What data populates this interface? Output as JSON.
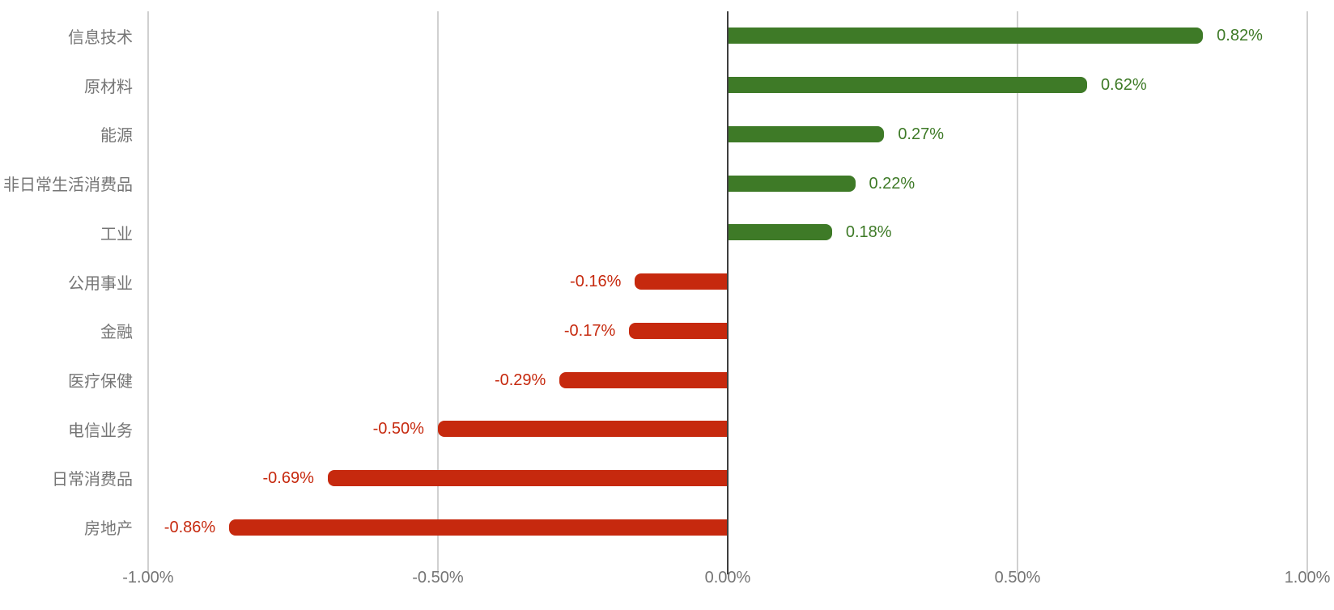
{
  "chart_data": {
    "type": "bar",
    "orientation": "horizontal",
    "title": "",
    "xlabel": "",
    "ylabel": "",
    "grid": true,
    "legend": "none",
    "xlim": [
      -1.018,
      1.046
    ],
    "categories": [
      "信息技术",
      "原材料",
      "能源",
      "非日常生活消费品",
      "工业",
      "公用事业",
      "金融",
      "医疗保健",
      "电信业务",
      "日常消费品",
      "房地产"
    ],
    "values": [
      0.82,
      0.62,
      0.27,
      0.22,
      0.18,
      -0.16,
      -0.17,
      -0.29,
      -0.5,
      -0.69,
      -0.86
    ],
    "value_labels": [
      "0.82%",
      "0.62%",
      "0.27%",
      "0.22%",
      "0.18%",
      "-0.16%",
      "-0.17%",
      "-0.29%",
      "-0.50%",
      "-0.69%",
      "-0.86%"
    ],
    "x_ticks": [
      {
        "value": -1.0,
        "label": "-1.00%"
      },
      {
        "value": -0.5,
        "label": "-0.50%"
      },
      {
        "value": 0.0,
        "label": "0.00%"
      },
      {
        "value": 0.5,
        "label": "0.50%"
      },
      {
        "value": 1.0,
        "label": "1.00%"
      }
    ],
    "colors": {
      "positive": "#3e7a27",
      "negative": "#c6290e",
      "grid": "#d0d0d0",
      "zero_axis": "#3f3f3f",
      "category_label": "#757575",
      "tick_label": "#757575"
    }
  }
}
